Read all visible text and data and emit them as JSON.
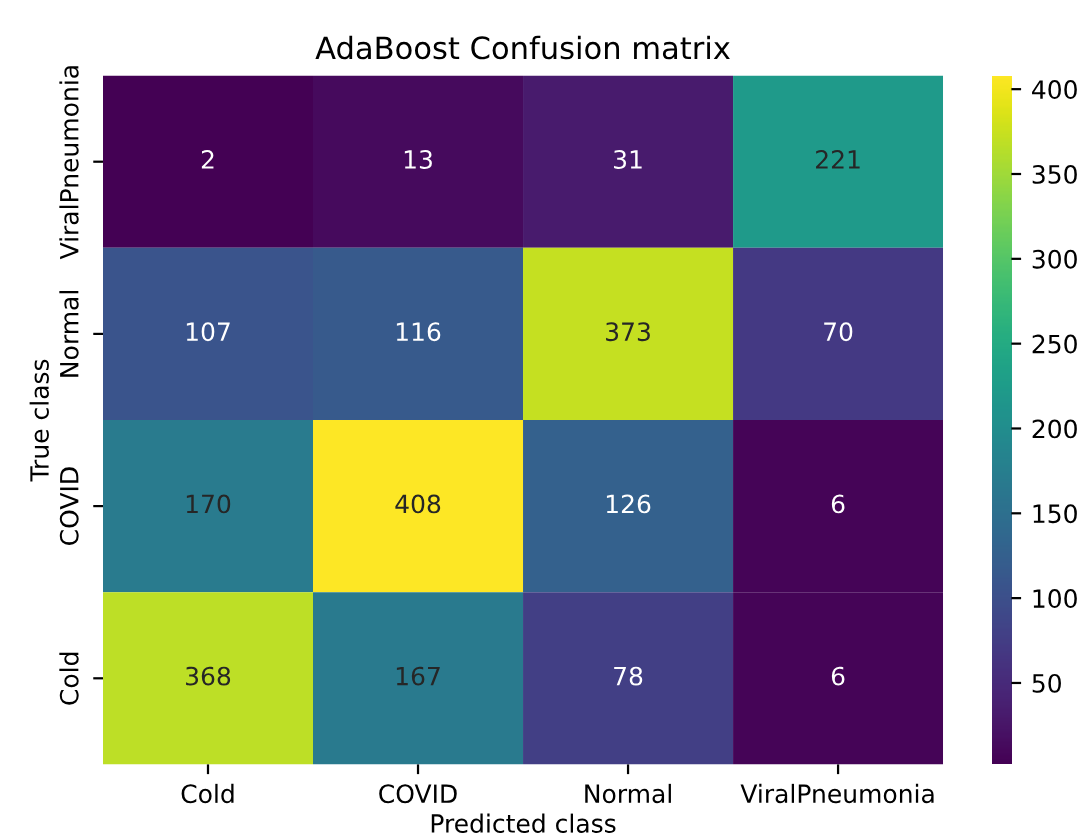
{
  "chart_data": {
    "type": "heatmap",
    "title": "AdaBoost Confusion matrix",
    "xlabel": "Predicted class",
    "ylabel": "True class",
    "categories": [
      "Cold",
      "COVID",
      "Normal",
      "ViralPneumonia"
    ],
    "y_categories": [
      "ViralPneumonia",
      "Normal",
      "COVID",
      "Cold"
    ],
    "cells": [
      [
        2,
        13,
        31,
        221
      ],
      [
        107,
        116,
        373,
        70
      ],
      [
        170,
        408,
        126,
        6
      ],
      [
        368,
        167,
        78,
        6
      ]
    ],
    "clim": [
      2,
      408
    ],
    "cticks": [
      50,
      100,
      150,
      200,
      250,
      300,
      350,
      400
    ],
    "data_labels": true
  }
}
